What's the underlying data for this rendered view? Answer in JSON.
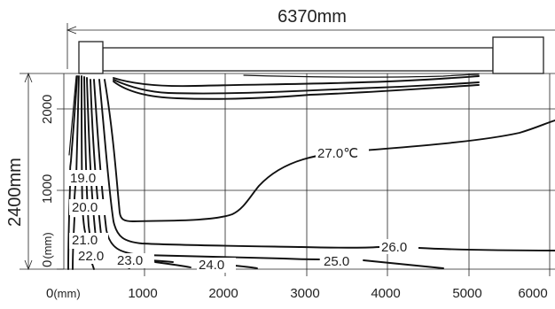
{
  "dims": {
    "width_label": "6370mm",
    "height_label": "2400mm"
  },
  "x_axis": {
    "origin_label": "0",
    "origin_unit": "(mm)",
    "ticks": [
      "1000",
      "2000",
      "3000",
      "4000",
      "5000",
      "6000"
    ]
  },
  "y_axis": {
    "origin_label": "0",
    "origin_unit": "(mm)",
    "ticks": [
      "1000",
      "2000"
    ]
  },
  "contours": [
    {
      "label": "19.0"
    },
    {
      "label": "20.0"
    },
    {
      "label": "21.0"
    },
    {
      "label": "22.0"
    },
    {
      "label": "23.0"
    },
    {
      "label": "24.0"
    },
    {
      "label": "25.0"
    },
    {
      "label": "26.0"
    },
    {
      "label": "27.0℃"
    }
  ]
}
